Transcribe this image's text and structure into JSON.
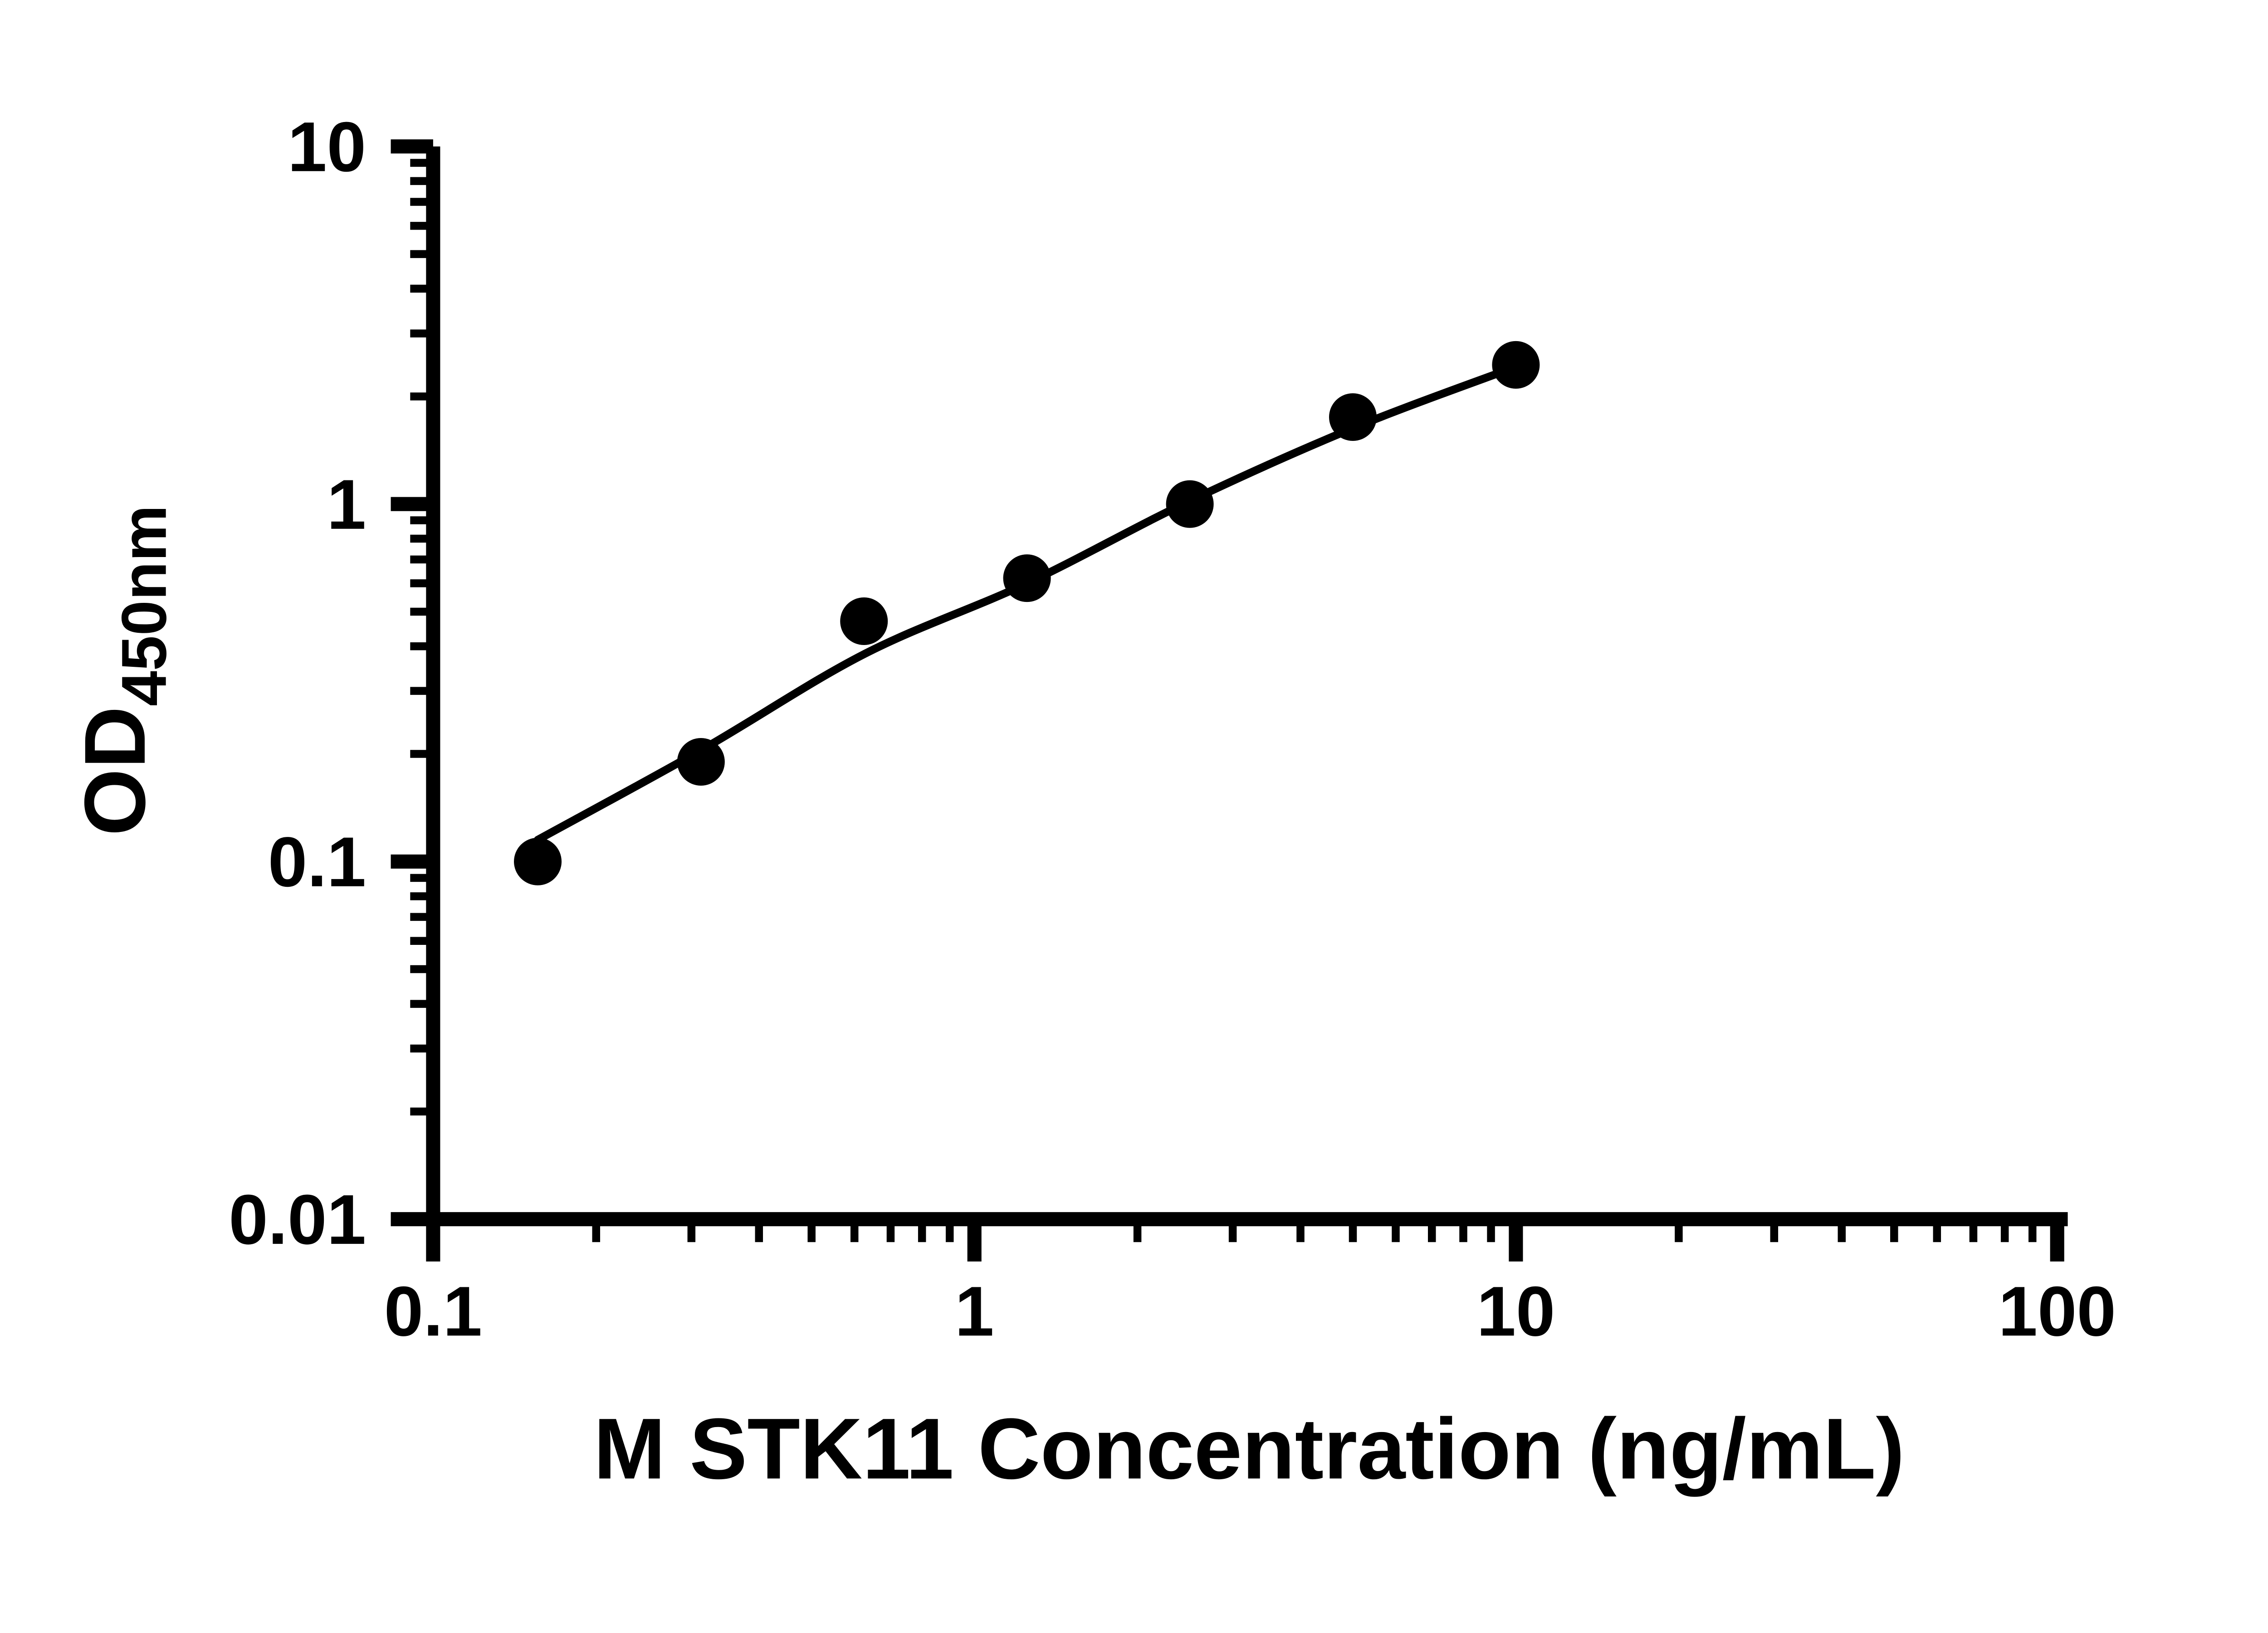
{
  "chart_data": {
    "type": "scatter",
    "title": "",
    "xlabel": "M STK11 Concentration (ng/mL)",
    "ylabel": "OD",
    "ylabel_subscript": "450nm",
    "xscale": "log",
    "yscale": "log",
    "xlim": [
      0.1,
      100
    ],
    "ylim": [
      0.01,
      10
    ],
    "grid": false,
    "legend": false,
    "axis_color": "#000000",
    "marker_color": "#000000",
    "background_color": "#ffffff",
    "x_ticks": {
      "values": [
        0.1,
        1,
        10,
        100
      ],
      "labels": [
        "0.1",
        "1",
        "10",
        "100"
      ]
    },
    "y_ticks": {
      "values": [
        0.01,
        0.1,
        1,
        10
      ],
      "labels": [
        "0.01",
        "0.1",
        "1",
        "10"
      ]
    },
    "series": [
      {
        "name": "standard-fit-curve",
        "type": "line",
        "color": "#000000",
        "x": [
          0.156,
          0.3125,
          0.625,
          1.25,
          2.5,
          5,
          10
        ],
        "y": [
          0.115,
          0.205,
          0.38,
          0.6,
          1.02,
          1.63,
          2.42
        ]
      },
      {
        "name": "standard-points",
        "type": "scatter",
        "marker": "filled-circle",
        "color": "#000000",
        "x": [
          0.156,
          0.3125,
          0.625,
          1.25,
          2.5,
          5,
          10
        ],
        "y": [
          0.1,
          0.19,
          0.47,
          0.62,
          1.0,
          1.75,
          2.45
        ]
      }
    ]
  }
}
